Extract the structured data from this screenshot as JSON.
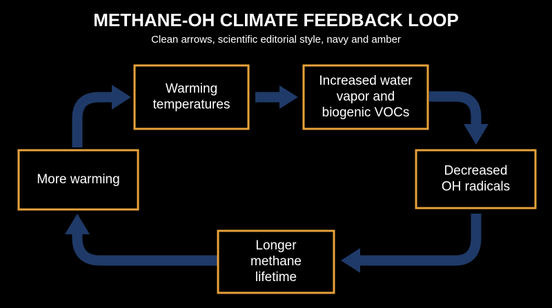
{
  "header": {
    "title": "METHANE-OH CLIMATE FEEDBACK LOOP",
    "subtitle": "Clean arrows, scientific editorial style, navy and amber"
  },
  "nodes": [
    {
      "lines": [
        "Warming",
        "temperatures"
      ]
    },
    {
      "lines": [
        "Increased water",
        "vapor and",
        "biogenic VOCs"
      ]
    },
    {
      "lines": [
        "Decreased",
        "OH radicals"
      ]
    },
    {
      "lines": [
        "Longer",
        "methane",
        "lifetime"
      ]
    },
    {
      "lines": [
        "More warming"
      ]
    }
  ]
}
